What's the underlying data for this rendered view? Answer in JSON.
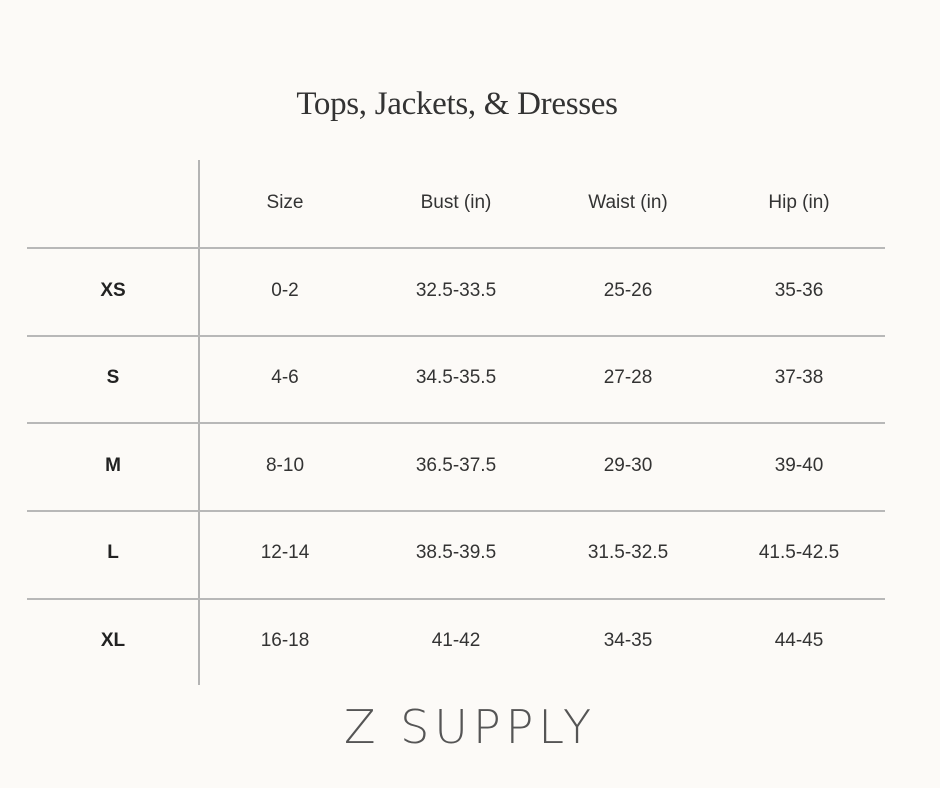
{
  "title": "Tops, Jackets, & Dresses",
  "headers": [
    "",
    "Size",
    "Bust (in)",
    "Waist (in)",
    "Hip (in)"
  ],
  "rows": [
    [
      "XS",
      "0-2",
      "32.5-33.5",
      "25-26",
      "35-36"
    ],
    [
      "S",
      "4-6",
      "34.5-35.5",
      "27-28",
      "37-38"
    ],
    [
      "M",
      "8-10",
      "36.5-37.5",
      "29-30",
      "39-40"
    ],
    [
      "L",
      "12-14",
      "38.5-39.5",
      "31.5-32.5",
      "41.5-42.5"
    ],
    [
      "XL",
      "16-18",
      "41-42",
      "34-35",
      "44-45"
    ]
  ],
  "brand": "Z SUPPLY",
  "colors": {
    "background": "#fcfaf7",
    "text": "#333333",
    "rule": "#b8b8b8"
  }
}
